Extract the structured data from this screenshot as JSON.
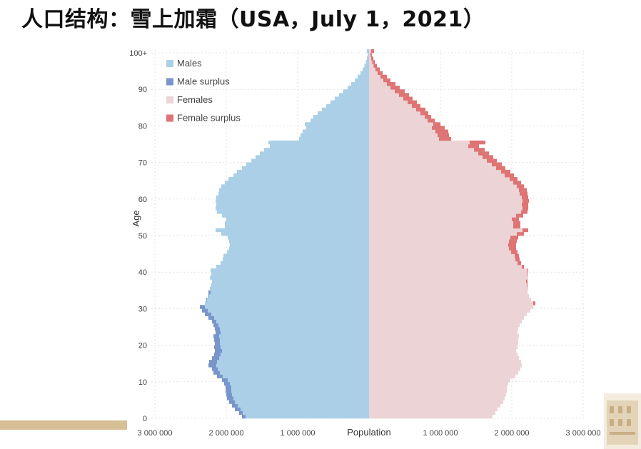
{
  "slide": {
    "title": "人口结构：雪上加霜（USA，July 1，2021）"
  },
  "chart_data": {
    "type": "bar",
    "orientation": "horizontal-population-pyramid",
    "xlabel": "Population",
    "ylabel": "Age",
    "xlim": [
      -3000000,
      3000000
    ],
    "ylim": [
      0,
      100
    ],
    "x_tick_labels": [
      "3 000 000",
      "2 000 000",
      "1 000 000",
      "Population",
      "1 000 000",
      "2 000 000",
      "3 000 000"
    ],
    "y_tick_labels": [
      "0",
      "10",
      "20",
      "30",
      "40",
      "50",
      "60",
      "70",
      "80",
      "90",
      "100+"
    ],
    "legend": [
      "Males",
      "Male surplus",
      "Females",
      "Female surplus"
    ],
    "legend_position": "top-left",
    "grid": true,
    "colors": {
      "males": "#aacfe7",
      "male_surplus": "#7896cb",
      "females": "#ecd3d5",
      "female_surplus": "#de7474"
    },
    "ages": [
      0,
      1,
      2,
      3,
      4,
      5,
      6,
      7,
      8,
      9,
      10,
      11,
      12,
      13,
      14,
      15,
      16,
      17,
      18,
      19,
      20,
      21,
      22,
      23,
      24,
      25,
      26,
      27,
      28,
      29,
      30,
      31,
      32,
      33,
      34,
      35,
      36,
      37,
      38,
      39,
      40,
      41,
      42,
      43,
      44,
      45,
      46,
      47,
      48,
      49,
      50,
      51,
      52,
      53,
      54,
      55,
      56,
      57,
      58,
      59,
      60,
      61,
      62,
      63,
      64,
      65,
      66,
      67,
      68,
      69,
      70,
      71,
      72,
      73,
      74,
      75,
      76,
      77,
      78,
      79,
      80,
      81,
      82,
      83,
      84,
      85,
      86,
      87,
      88,
      89,
      90,
      91,
      92,
      93,
      94,
      95,
      96,
      97,
      98,
      99,
      100
    ],
    "males": [
      1780000,
      1820000,
      1880000,
      1920000,
      1960000,
      1990000,
      2000000,
      2010000,
      2010000,
      2030000,
      2060000,
      2130000,
      2180000,
      2200000,
      2250000,
      2240000,
      2200000,
      2170000,
      2160000,
      2170000,
      2160000,
      2170000,
      2180000,
      2150000,
      2160000,
      2180000,
      2200000,
      2250000,
      2300000,
      2340000,
      2370000,
      2300000,
      2280000,
      2250000,
      2250000,
      2230000,
      2210000,
      2200000,
      2230000,
      2210000,
      2220000,
      2140000,
      2080000,
      2050000,
      2040000,
      1990000,
      1960000,
      1950000,
      1960000,
      1980000,
      2070000,
      2150000,
      2020000,
      2020000,
      2000000,
      2060000,
      2130000,
      2150000,
      2140000,
      2150000,
      2140000,
      2110000,
      2100000,
      2070000,
      2020000,
      1970000,
      1900000,
      1850000,
      1780000,
      1720000,
      1650000,
      1590000,
      1530000,
      1470000,
      1390000,
      1410000,
      980000,
      960000,
      930000,
      880000,
      900000,
      820000,
      780000,
      720000,
      660000,
      600000,
      540000,
      480000,
      420000,
      360000,
      300000,
      250000,
      200000,
      160000,
      120000,
      90000,
      65000,
      45000,
      30000,
      20000,
      30000
    ],
    "females": [
      1730000,
      1770000,
      1800000,
      1840000,
      1880000,
      1900000,
      1920000,
      1930000,
      1930000,
      1950000,
      1980000,
      2050000,
      2090000,
      2120000,
      2140000,
      2130000,
      2100000,
      2080000,
      2060000,
      2080000,
      2090000,
      2090000,
      2100000,
      2080000,
      2090000,
      2110000,
      2140000,
      2170000,
      2210000,
      2260000,
      2300000,
      2330000,
      2270000,
      2240000,
      2220000,
      2230000,
      2220000,
      2220000,
      2230000,
      2220000,
      2230000,
      2170000,
      2130000,
      2110000,
      2100000,
      2080000,
      2060000,
      2060000,
      2070000,
      2090000,
      2170000,
      2230000,
      2120000,
      2120000,
      2100000,
      2160000,
      2220000,
      2230000,
      2230000,
      2240000,
      2230000,
      2220000,
      2210000,
      2170000,
      2130000,
      2080000,
      2030000,
      1980000,
      1910000,
      1860000,
      1790000,
      1740000,
      1680000,
      1620000,
      1540000,
      1630000,
      1150000,
      1120000,
      1110000,
      1060000,
      1000000,
      920000,
      870000,
      830000,
      790000,
      720000,
      670000,
      610000,
      560000,
      500000,
      430000,
      370000,
      300000,
      250000,
      190000,
      150000,
      110000,
      80000,
      60000,
      40000,
      70000
    ]
  },
  "decoration": {
    "thumbnail_icon": "building-photo-icon"
  }
}
